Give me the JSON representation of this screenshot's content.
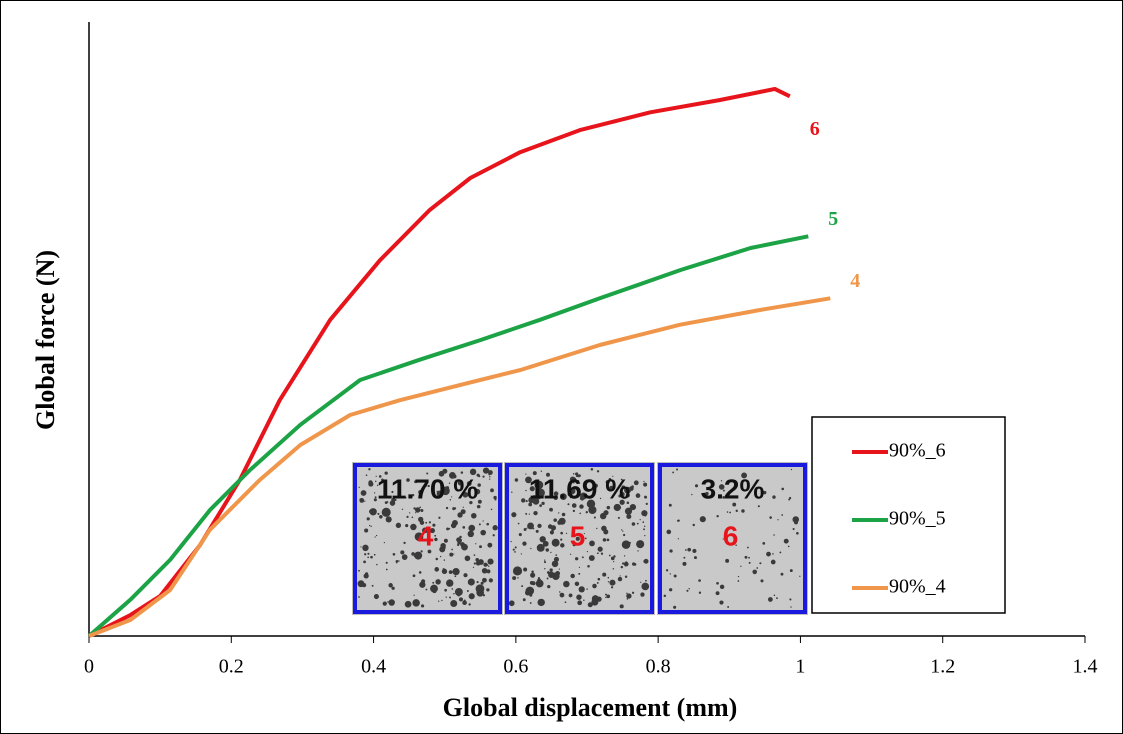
{
  "chart_data": {
    "type": "line",
    "xlabel": "Global displacement (mm)",
    "ylabel": "Global force (N)",
    "xlim": [
      0,
      1.4
    ],
    "xticks": [
      0,
      0.2,
      0.4,
      0.6,
      0.8,
      1,
      1.2,
      1.4
    ],
    "ylim": [
      0,
      100
    ],
    "legend": "lower right",
    "series": [
      {
        "name": "90%_6",
        "end_label": "6",
        "color": "#e8141b",
        "x": [
          0,
          0.058,
          0.1,
          0.156,
          0.212,
          0.268,
          0.339,
          0.409,
          0.479,
          0.536,
          0.606,
          0.69,
          0.789,
          0.887,
          0.943,
          0.964,
          0.985
        ],
        "values": [
          0,
          3.4,
          6.5,
          14.8,
          25.4,
          38.4,
          51.5,
          61.2,
          69.4,
          74.6,
          78.8,
          82.4,
          85.3,
          87.3,
          88.6,
          89.1,
          87.9
        ]
      },
      {
        "name": "90%_5",
        "end_label": "5",
        "color": "#1ba346",
        "x": [
          0,
          0.058,
          0.114,
          0.17,
          0.226,
          0.297,
          0.381,
          0.465,
          0.55,
          0.634,
          0.718,
          0.831,
          0.93,
          1.011
        ],
        "values": [
          0,
          5.9,
          12.4,
          20.5,
          27,
          34.4,
          41.7,
          45,
          48.2,
          51.5,
          55,
          59.6,
          63.2,
          65.1
        ]
      },
      {
        "name": "90%_4",
        "end_label": "4",
        "color": "#f0964a",
        "x": [
          0,
          0.058,
          0.114,
          0.17,
          0.24,
          0.297,
          0.367,
          0.437,
          0.522,
          0.606,
          0.718,
          0.831,
          0.943,
          1.042
        ],
        "values": [
          0,
          2.6,
          7.5,
          17.3,
          25.4,
          31.1,
          36,
          38.4,
          40.9,
          43.3,
          47.4,
          50.7,
          53.1,
          55
        ]
      }
    ],
    "insets": [
      {
        "porosity": "11.70 %",
        "label": "4"
      },
      {
        "porosity": "11.69 %",
        "label": "5"
      },
      {
        "porosity": "3.2%",
        "label": "6"
      }
    ]
  }
}
